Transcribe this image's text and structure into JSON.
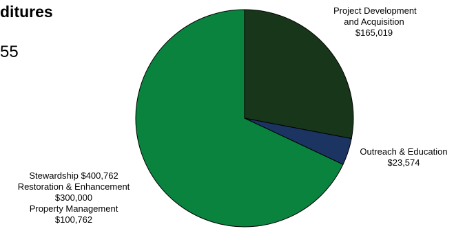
{
  "page": {
    "title": "ditures",
    "subtitle": "55"
  },
  "chart_data": {
    "type": "pie",
    "slices": [
      {
        "name": "Project Development and Acquisition",
        "value": 165019,
        "color": "#18361a"
      },
      {
        "name": "Outreach & Education",
        "value": 23574,
        "color": "#1b3461"
      },
      {
        "name": "Stewardship",
        "value": 400762,
        "color": "#0a833e",
        "components": [
          {
            "name": "Restoration & Enhancement",
            "value": 300000
          },
          {
            "name": "Property Management",
            "value": 100762
          }
        ]
      }
    ],
    "start": "12 o'clock",
    "direction": "clockwise",
    "labels": {
      "project": [
        "Project Development",
        "and Acquisition",
        "$165,019"
      ],
      "outreach": [
        "Outreach & Education",
        "$23,574"
      ],
      "stewardship": [
        "Stewardship $400,762",
        "Restoration & Enhancement",
        "$300,000",
        "Property Management",
        "$100,762"
      ]
    }
  }
}
